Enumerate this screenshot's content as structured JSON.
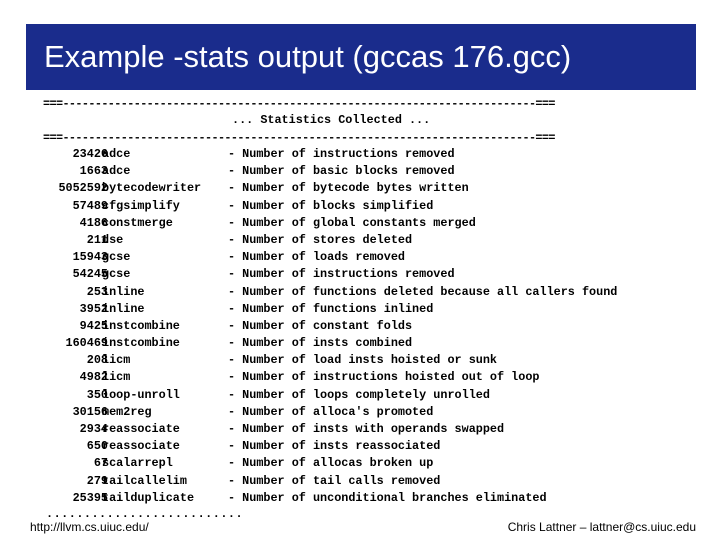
{
  "title": "Example -stats output (gccas 176.gcc)",
  "separator": "===-------------------------------------------------------------------------===",
  "collected_label": "... Statistics Collected ...",
  "rows": [
    {
      "count": "23426",
      "pass": "adce",
      "desc": "- Number of instructions removed"
    },
    {
      "count": "1663",
      "pass": "adce",
      "desc": "- Number of basic blocks removed"
    },
    {
      "count": "5052592",
      "pass": "bytecodewriter",
      "desc": "- Number of bytecode bytes written"
    },
    {
      "count": "57489",
      "pass": "cfgsimplify",
      "desc": "- Number of blocks simplified"
    },
    {
      "count": "4186",
      "pass": "constmerge",
      "desc": "- Number of global constants merged"
    },
    {
      "count": "211",
      "pass": "dse",
      "desc": "- Number of stores deleted"
    },
    {
      "count": "15943",
      "pass": "gcse",
      "desc": "- Number of loads removed"
    },
    {
      "count": "54245",
      "pass": "gcse",
      "desc": "- Number of instructions removed"
    },
    {
      "count": "253",
      "pass": "inline",
      "desc": "- Number of functions deleted because all callers found"
    },
    {
      "count": "3952",
      "pass": "inline",
      "desc": "- Number of functions inlined"
    },
    {
      "count": "9425",
      "pass": "instcombine",
      "desc": "- Number of constant folds"
    },
    {
      "count": "160469",
      "pass": "instcombine",
      "desc": "- Number of insts combined"
    },
    {
      "count": "208",
      "pass": "licm",
      "desc": "- Number of load insts hoisted or sunk"
    },
    {
      "count": "4982",
      "pass": "licm",
      "desc": "- Number of instructions hoisted out of loop"
    },
    {
      "count": "350",
      "pass": "loop-unroll",
      "desc": "- Number of loops completely unrolled"
    },
    {
      "count": "30156",
      "pass": "mem2reg",
      "desc": "- Number of alloca's promoted"
    },
    {
      "count": "2934",
      "pass": "reassociate",
      "desc": "- Number of insts with operands swapped"
    },
    {
      "count": "650",
      "pass": "reassociate",
      "desc": "- Number of insts reassociated"
    },
    {
      "count": "67",
      "pass": "scalarrepl",
      "desc": "- Number of allocas broken up"
    },
    {
      "count": "279",
      "pass": "tailcallelim",
      "desc": "- Number of tail calls removed"
    },
    {
      "count": "25395",
      "pass": "tailduplicate",
      "desc": "- Number of unconditional branches eliminated"
    }
  ],
  "ellipsis": "..........................",
  "footer": {
    "left": "http://llvm.cs.uiuc.edu/",
    "right": "Chris Lattner – lattner@cs.uiuc.edu"
  },
  "colors": {
    "title_bg": "#1a2c8c",
    "title_text": "#ffffff"
  }
}
